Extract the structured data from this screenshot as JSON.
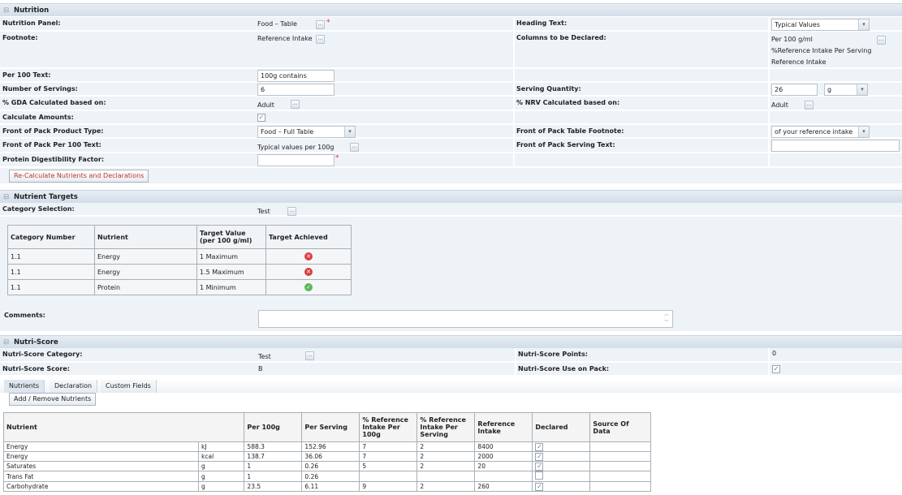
{
  "colors": {
    "required": "#cc3333",
    "fail": "#d9403f",
    "pass": "#5cb85c",
    "button_text": "#c0392b"
  },
  "nutrition": {
    "title": "Nutrition",
    "nutrition_panel": {
      "label": "Nutrition Panel:",
      "value": "Food – Table"
    },
    "footnote": {
      "label": "Footnote:",
      "value": "Reference Intake"
    },
    "per100_text": {
      "label": "Per 100 Text:",
      "value": "100g contains"
    },
    "number_of_servings": {
      "label": "Number of Servings:",
      "value": "6"
    },
    "gda_based_on": {
      "label": "% GDA Calculated based on:",
      "value": "Adult"
    },
    "calculate_amounts": {
      "label": "Calculate Amounts:",
      "checked": true
    },
    "fop_product_type": {
      "label": "Front of Pack Product Type:",
      "value": "Food – Full Table"
    },
    "fop_per100_text": {
      "label": "Front of Pack Per 100 Text:",
      "value": "Typical values per 100g"
    },
    "protein_digestibility": {
      "label": "Protein Digestibility Factor:",
      "value": ""
    },
    "heading_text": {
      "label": "Heading Text:",
      "value": "Typical Values"
    },
    "columns_declared": {
      "label": "Columns to be Declared:",
      "values": [
        "Per 100 g/ml",
        "%Reference Intake Per Serving",
        "Reference Intake"
      ]
    },
    "serving_quantity": {
      "label": "Serving Quantity:",
      "value": "26",
      "unit": "g"
    },
    "nrv_based_on": {
      "label": "% NRV Calculated based on:",
      "value": "Adult"
    },
    "fop_table_footnote": {
      "label": "Front of Pack Table Footnote:",
      "value": "of your reference intake"
    },
    "fop_serving_text": {
      "label": "Front of Pack Serving Text:",
      "value": ""
    },
    "recalc_button": "Re-Calculate Nutrients and Declarations",
    "dots": "..."
  },
  "targets": {
    "title": "Nutrient Targets",
    "category_selection": {
      "label": "Category Selection:",
      "value": "Test"
    },
    "headers": [
      "Category Number",
      "Nutrient",
      "Target Value (per 100 g/ml)",
      "Target Achieved"
    ],
    "rows": [
      {
        "category": "1.1",
        "nutrient": "Energy",
        "target": "1 Maximum",
        "achieved": false
      },
      {
        "category": "1.1",
        "nutrient": "Energy",
        "target": "1.5 Maximum",
        "achieved": false
      },
      {
        "category": "1.1",
        "nutrient": "Protein",
        "target": "1 Minimum",
        "achieved": true
      }
    ],
    "comments": {
      "label": "Comments:",
      "value": ""
    }
  },
  "nutriscore": {
    "title": "Nutri-Score",
    "category": {
      "label": "Nutri-Score Category:",
      "value": "Test"
    },
    "score": {
      "label": "Nutri-Score Score:",
      "value": "B"
    },
    "points": {
      "label": "Nutri-Score Points:",
      "value": "0"
    },
    "use_on_pack": {
      "label": "Nutri-Score Use on Pack:",
      "checked": true
    }
  },
  "tabs": [
    "Nutrients",
    "Declaration",
    "Custom Fields"
  ],
  "add_remove_button": "Add / Remove Nutrients",
  "nutrients": {
    "headers": [
      "Nutrient",
      "Per 100g",
      "Per Serving",
      "% Reference Intake Per 100g",
      "% Reference Intake Per Serving",
      "Reference Intake",
      "Declared",
      "Source Of Data"
    ],
    "rows": [
      {
        "name": "Energy",
        "unit": "kJ",
        "per100": "588.3",
        "serving": "152.96",
        "ri100": "7",
        "riserv": "2",
        "ri": "8400",
        "declared": true
      },
      {
        "name": "Energy",
        "unit": "kcal",
        "per100": "138.7",
        "serving": "36.06",
        "ri100": "7",
        "riserv": "2",
        "ri": "2000",
        "declared": true
      },
      {
        "name": "Saturates",
        "unit": "g",
        "per100": "1",
        "serving": "0.26",
        "ri100": "5",
        "riserv": "2",
        "ri": "20",
        "declared": true
      },
      {
        "name": "Trans Fat",
        "unit": "g",
        "per100": "1",
        "serving": "0.26",
        "ri100": "",
        "riserv": "",
        "ri": "",
        "declared": false
      },
      {
        "name": "Carbohydrate",
        "unit": "g",
        "per100": "23.5",
        "serving": "6.11",
        "ri100": "9",
        "riserv": "2",
        "ri": "260",
        "declared": true
      }
    ]
  }
}
